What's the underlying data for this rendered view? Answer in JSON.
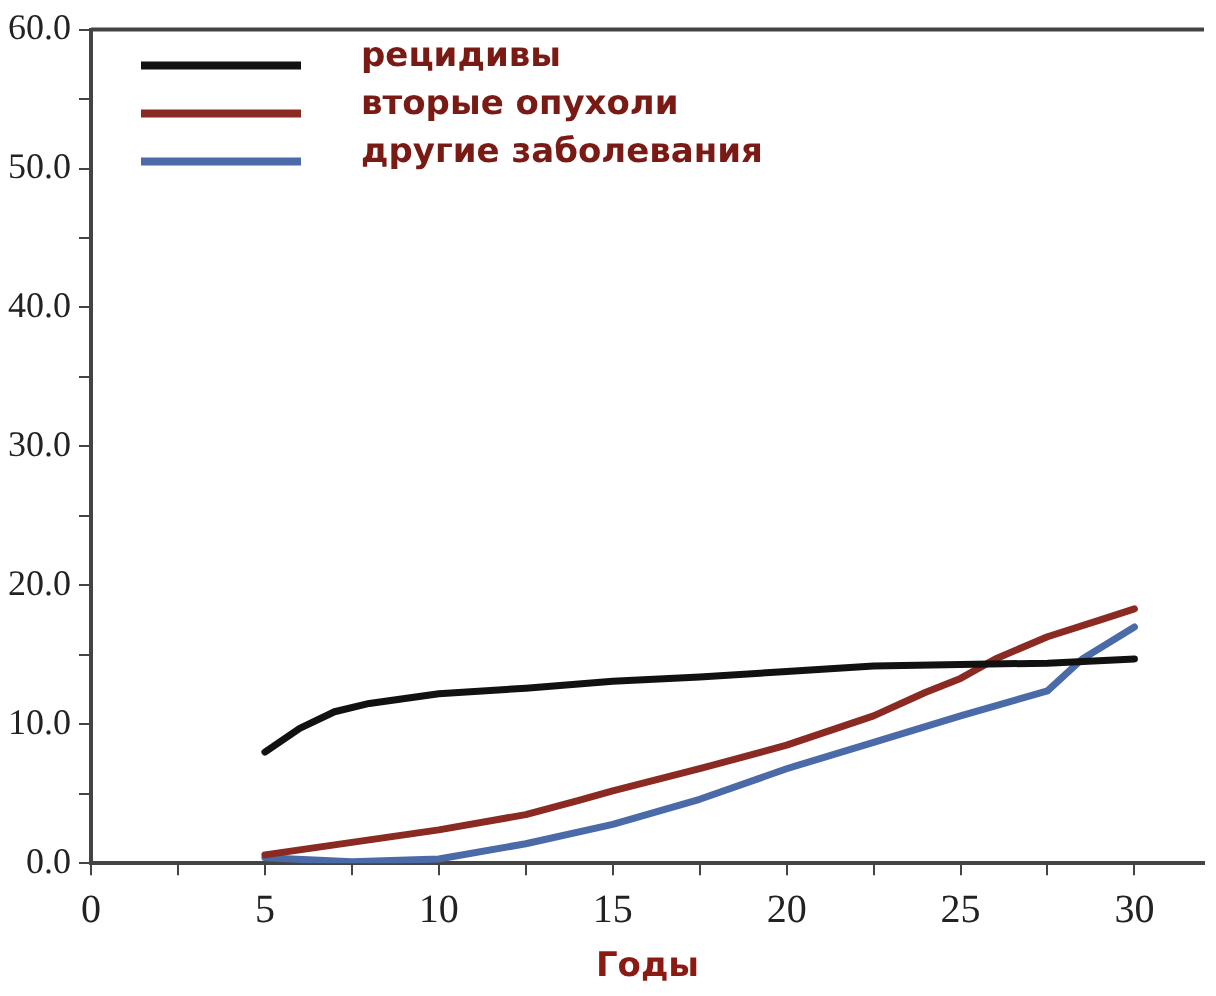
{
  "chart_data": {
    "type": "line",
    "xlabel": "Годы",
    "series": [
      {
        "name": "рецидивы",
        "color": "#111111",
        "x": [
          5,
          6,
          7,
          8,
          10,
          12.5,
          15,
          17.5,
          20,
          22.5,
          25,
          27.5,
          30
        ],
        "values": [
          8.0,
          9.7,
          10.9,
          11.5,
          12.2,
          12.6,
          13.1,
          13.4,
          13.8,
          14.2,
          14.3,
          14.4,
          14.7
        ]
      },
      {
        "name": "вторые опухоли",
        "color": "#8b2a22",
        "x": [
          5,
          7.5,
          10,
          12.5,
          14,
          15,
          17.5,
          20,
          22.5,
          24,
          25,
          26,
          27.5,
          29,
          30
        ],
        "values": [
          0.6,
          1.5,
          2.4,
          3.5,
          4.5,
          5.2,
          6.8,
          8.5,
          10.6,
          12.3,
          13.3,
          14.7,
          16.3,
          17.5,
          18.3
        ]
      },
      {
        "name": "другие заболевания",
        "color": "#4a6aa8",
        "x": [
          5,
          7.5,
          10,
          12.5,
          15,
          17.5,
          20,
          22.5,
          25,
          27.5,
          28.5,
          30
        ],
        "values": [
          0.4,
          0.1,
          0.3,
          1.4,
          2.8,
          4.6,
          6.8,
          8.7,
          10.6,
          12.4,
          14.7,
          17.0
        ]
      }
    ],
    "xlim": [
      0,
      32
    ],
    "xticks": [
      0,
      {
        "value": 2.5,
        "label": null
      },
      5,
      {
        "value": 7.5,
        "label": null
      },
      10,
      {
        "value": 12.5,
        "label": null
      },
      15,
      {
        "value": 17.5,
        "label": null
      },
      20,
      {
        "value": 22.5,
        "label": null
      },
      25,
      {
        "value": 27.5,
        "label": null
      },
      30
    ],
    "ylim": [
      0,
      60
    ],
    "yticks": [
      {
        "value": 0,
        "label": "0.0"
      },
      {
        "value": 5,
        "label": null
      },
      {
        "value": 10,
        "label": "10.0"
      },
      {
        "value": 15,
        "label": null
      },
      {
        "value": 20,
        "label": "20.0"
      },
      {
        "value": 25,
        "label": null
      },
      {
        "value": 30,
        "label": "30.0"
      },
      {
        "value": 35,
        "label": null
      },
      {
        "value": 40,
        "label": "40.0"
      },
      {
        "value": 45,
        "label": null
      },
      {
        "value": 50,
        "label": "50.0"
      },
      {
        "value": 55,
        "label": null
      },
      {
        "value": 60,
        "label": "60.0"
      }
    ],
    "legend": "top left",
    "grid": false,
    "marker": "none",
    "line_style": "solid"
  }
}
